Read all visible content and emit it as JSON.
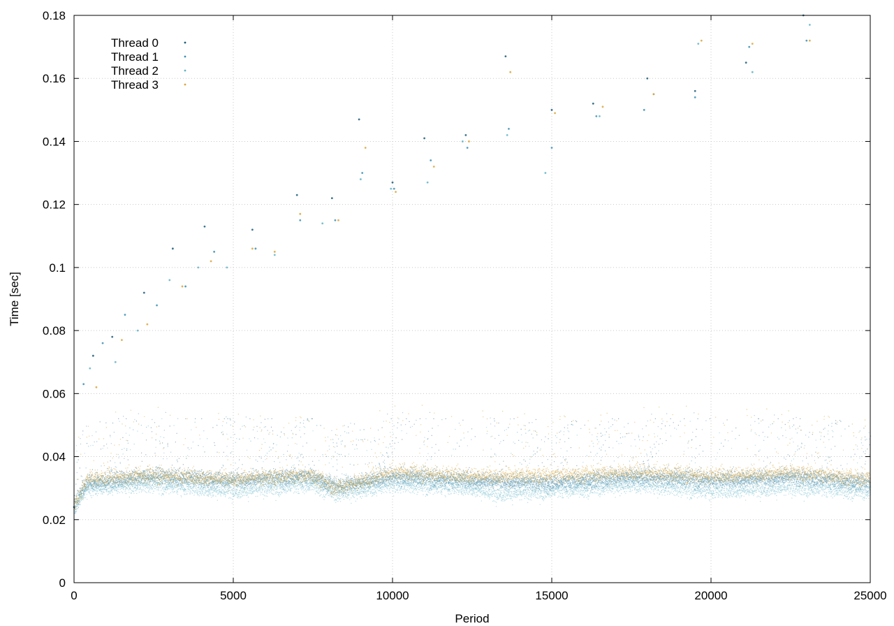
{
  "chart_data": {
    "type": "scatter",
    "xlabel": "Period",
    "ylabel": "Time [sec]",
    "xlim": [
      0,
      25000
    ],
    "ylim": [
      0,
      0.18
    ],
    "xticks": [
      0,
      5000,
      10000,
      15000,
      20000,
      25000
    ],
    "xtick_labels": [
      "0",
      "5000",
      "10000",
      "15000",
      "20000",
      "25000"
    ],
    "yticks": [
      0,
      0.02,
      0.04,
      0.06,
      0.08,
      0.1,
      0.12,
      0.14,
      0.16,
      0.18
    ],
    "ytick_labels": [
      "0",
      "0.02",
      "0.04",
      "0.06",
      "0.08",
      "0.1",
      "0.12",
      "0.14",
      "0.16",
      "0.18"
    ],
    "grid": true,
    "legend": "top-left",
    "series": [
      {
        "name": "Thread 0",
        "color": "#1a5a78",
        "points": [
          [
            0,
            0.024
          ],
          [
            600,
            0.072
          ],
          [
            1200,
            0.078
          ],
          [
            2200,
            0.092
          ],
          [
            3100,
            0.106
          ],
          [
            4100,
            0.113
          ],
          [
            5600,
            0.112
          ],
          [
            7000,
            0.123
          ],
          [
            8100,
            0.122
          ],
          [
            8950,
            0.147
          ],
          [
            10000,
            0.127
          ],
          [
            11000,
            0.141
          ],
          [
            12300,
            0.142
          ],
          [
            13550,
            0.167
          ],
          [
            15000,
            0.15
          ],
          [
            16300,
            0.152
          ],
          [
            18000,
            0.16
          ],
          [
            19500,
            0.156
          ],
          [
            21100,
            0.165
          ],
          [
            22900,
            0.18
          ]
        ],
        "typical_range": [
          0.027,
          0.04
        ],
        "trend": [
          [
            0,
            0.025
          ],
          [
            400,
            0.032
          ],
          [
            2500,
            0.034
          ],
          [
            5000,
            0.033
          ],
          [
            7500,
            0.034
          ],
          [
            8200,
            0.03
          ],
          [
            10000,
            0.034
          ],
          [
            12500,
            0.033
          ],
          [
            15000,
            0.032
          ],
          [
            17500,
            0.034
          ],
          [
            20000,
            0.033
          ],
          [
            22500,
            0.034
          ],
          [
            24900,
            0.032
          ]
        ]
      },
      {
        "name": "Thread 1",
        "color": "#3a8fb5",
        "points": [
          [
            300,
            0.063
          ],
          [
            900,
            0.076
          ],
          [
            1600,
            0.085
          ],
          [
            2600,
            0.088
          ],
          [
            3500,
            0.094
          ],
          [
            4400,
            0.105
          ],
          [
            5700,
            0.106
          ],
          [
            7100,
            0.115
          ],
          [
            8200,
            0.115
          ],
          [
            9050,
            0.13
          ],
          [
            10050,
            0.125
          ],
          [
            11200,
            0.134
          ],
          [
            12350,
            0.138
          ],
          [
            13650,
            0.144
          ],
          [
            15000,
            0.138
          ],
          [
            16400,
            0.148
          ],
          [
            17900,
            0.15
          ],
          [
            19500,
            0.154
          ],
          [
            21200,
            0.17
          ],
          [
            23000,
            0.172
          ]
        ],
        "typical_range": [
          0.026,
          0.042
        ],
        "trend": [
          [
            0,
            0.024
          ],
          [
            400,
            0.031
          ],
          [
            2500,
            0.033
          ],
          [
            5000,
            0.032
          ],
          [
            7500,
            0.033
          ],
          [
            8200,
            0.031
          ],
          [
            10000,
            0.033
          ],
          [
            12500,
            0.032
          ],
          [
            15000,
            0.031
          ],
          [
            17500,
            0.033
          ],
          [
            20000,
            0.032
          ],
          [
            22500,
            0.033
          ],
          [
            24900,
            0.031
          ]
        ]
      },
      {
        "name": "Thread 2",
        "color": "#5fb3c8",
        "points": [
          [
            500,
            0.068
          ],
          [
            1300,
            0.07
          ],
          [
            2000,
            0.08
          ],
          [
            3000,
            0.096
          ],
          [
            3900,
            0.1
          ],
          [
            4800,
            0.1
          ],
          [
            6300,
            0.104
          ],
          [
            7800,
            0.114
          ],
          [
            9000,
            0.128
          ],
          [
            9950,
            0.125
          ],
          [
            11100,
            0.127
          ],
          [
            12200,
            0.14
          ],
          [
            13600,
            0.142
          ],
          [
            14800,
            0.13
          ],
          [
            16500,
            0.148
          ],
          [
            18200,
            0.155
          ],
          [
            19600,
            0.171
          ],
          [
            21300,
            0.162
          ],
          [
            23100,
            0.177
          ]
        ],
        "typical_range": [
          0.025,
          0.04
        ],
        "trend": [
          [
            0,
            0.024
          ],
          [
            400,
            0.03
          ],
          [
            2500,
            0.031
          ],
          [
            5000,
            0.029
          ],
          [
            7500,
            0.031
          ],
          [
            8300,
            0.028
          ],
          [
            10000,
            0.031
          ],
          [
            12500,
            0.03
          ],
          [
            13200,
            0.028
          ],
          [
            15000,
            0.029
          ],
          [
            17500,
            0.031
          ],
          [
            20000,
            0.029
          ],
          [
            22500,
            0.03
          ],
          [
            24900,
            0.029
          ]
        ]
      },
      {
        "name": "Thread 3",
        "color": "#d9a63a",
        "points": [
          [
            700,
            0.062
          ],
          [
            1500,
            0.077
          ],
          [
            2300,
            0.082
          ],
          [
            3400,
            0.094
          ],
          [
            4300,
            0.102
          ],
          [
            5600,
            0.106
          ],
          [
            6300,
            0.105
          ],
          [
            7100,
            0.117
          ],
          [
            8300,
            0.115
          ],
          [
            9150,
            0.138
          ],
          [
            10100,
            0.124
          ],
          [
            11300,
            0.132
          ],
          [
            12400,
            0.14
          ],
          [
            13700,
            0.162
          ],
          [
            15100,
            0.149
          ],
          [
            16600,
            0.151
          ],
          [
            18200,
            0.155
          ],
          [
            19700,
            0.172
          ],
          [
            21300,
            0.171
          ],
          [
            23100,
            0.172
          ]
        ],
        "typical_range": [
          0.026,
          0.05
        ],
        "trend": [
          [
            0,
            0.024
          ],
          [
            400,
            0.033
          ],
          [
            2500,
            0.034
          ],
          [
            5000,
            0.033
          ],
          [
            7500,
            0.034
          ],
          [
            8200,
            0.03
          ],
          [
            10000,
            0.035
          ],
          [
            12500,
            0.034
          ],
          [
            15000,
            0.034
          ],
          [
            17500,
            0.035
          ],
          [
            20000,
            0.034
          ],
          [
            22500,
            0.035
          ],
          [
            24900,
            0.033
          ]
        ]
      }
    ]
  }
}
